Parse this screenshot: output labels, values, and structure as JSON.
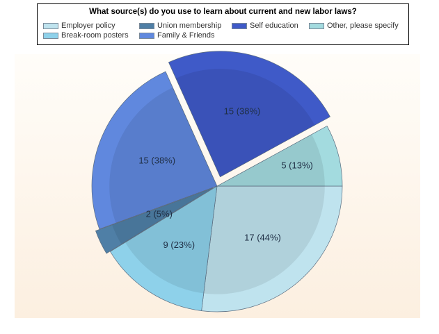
{
  "chart_data": {
    "type": "pie",
    "title": "What source(s) do you use to learn about current and new labor laws?",
    "legend_position": "top",
    "slices": [
      {
        "label": "Employer policy",
        "value": 17,
        "display": "17 (44%)",
        "color": "#bfe3ee"
      },
      {
        "label": "Break-room posters",
        "value": 9,
        "display": "9 (23%)",
        "color": "#8ed1ea"
      },
      {
        "label": "Union membership",
        "value": 2,
        "display": "2 (5%)",
        "color": "#4f7fa6"
      },
      {
        "label": "Family & Friends",
        "value": 15,
        "display": "15 (38%)",
        "color": "#6088de"
      },
      {
        "label": "Self education",
        "value": 15,
        "display": "15 (38%)",
        "color": "#3f5ac8"
      },
      {
        "label": "Other, please specify",
        "value": 5,
        "display": "5 (13%)",
        "color": "#a3dbdf"
      }
    ],
    "legend": [
      {
        "label": "Employer policy",
        "color": "#bfe3ee"
      },
      {
        "label": "Union membership",
        "color": "#4f7fa6"
      },
      {
        "label": "Self education",
        "color": "#3f5ac8"
      },
      {
        "label": "Other, please specify",
        "color": "#a3dbdf"
      },
      {
        "label": "Break-room posters",
        "color": "#8ed1ea"
      },
      {
        "label": "Family & Friends",
        "color": "#6088de"
      }
    ]
  }
}
